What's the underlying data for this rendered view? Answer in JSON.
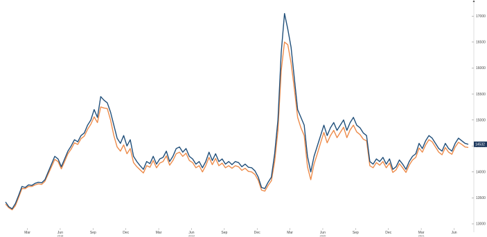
{
  "chart_data": {
    "type": "line",
    "title": "",
    "xlabel": "",
    "ylabel": "",
    "ylim": [
      12920,
      17230
    ],
    "grid": false,
    "legend": "none",
    "y_ticks": [
      13000,
      13500,
      14000,
      14500,
      15000,
      15500,
      16000,
      16500,
      17000
    ],
    "x_ticks": [
      {
        "label": "Mar",
        "x": 2
      },
      {
        "label": "Jun",
        "x": 5
      },
      {
        "label": "Sep",
        "x": 8
      },
      {
        "label": "Dec",
        "x": 11
      },
      {
        "label": "Mar",
        "x": 14
      },
      {
        "label": "Jun",
        "x": 17
      },
      {
        "label": "Sep",
        "x": 20
      },
      {
        "label": "Dec",
        "x": 23
      },
      {
        "label": "Mar",
        "x": 26
      },
      {
        "label": "Jun",
        "x": 29
      },
      {
        "label": "Sep",
        "x": 32
      },
      {
        "label": "Dec",
        "x": 35
      },
      {
        "label": "Mar",
        "x": 38
      },
      {
        "label": "Jun",
        "x": 41
      }
    ],
    "year_labels": [
      {
        "label": "2018",
        "x": 5
      },
      {
        "label": "2019",
        "x": 17
      },
      {
        "label": "2020",
        "x": 29
      },
      {
        "label": "2021",
        "x": 38
      }
    ],
    "last_value_label": "14532",
    "series": [
      {
        "color": "#1f4e79",
        "points": [
          [
            0.0,
            13420
          ],
          [
            0.3,
            13330
          ],
          [
            0.6,
            13290
          ],
          [
            0.9,
            13390
          ],
          [
            1.2,
            13550
          ],
          [
            1.5,
            13720
          ],
          [
            1.8,
            13700
          ],
          [
            2.1,
            13750
          ],
          [
            2.4,
            13740
          ],
          [
            2.7,
            13780
          ],
          [
            3.0,
            13800
          ],
          [
            3.3,
            13790
          ],
          [
            3.6,
            13850
          ],
          [
            3.9,
            14000
          ],
          [
            4.2,
            14150
          ],
          [
            4.5,
            14300
          ],
          [
            4.8,
            14250
          ],
          [
            5.1,
            14100
          ],
          [
            5.4,
            14250
          ],
          [
            5.7,
            14400
          ],
          [
            6.0,
            14500
          ],
          [
            6.3,
            14620
          ],
          [
            6.6,
            14580
          ],
          [
            6.9,
            14700
          ],
          [
            7.2,
            14750
          ],
          [
            7.5,
            14900
          ],
          [
            7.8,
            15000
          ],
          [
            8.1,
            15200
          ],
          [
            8.4,
            15050
          ],
          [
            8.7,
            15450
          ],
          [
            9.0,
            15380
          ],
          [
            9.3,
            15330
          ],
          [
            9.6,
            15150
          ],
          [
            9.9,
            14900
          ],
          [
            10.2,
            14650
          ],
          [
            10.5,
            14550
          ],
          [
            10.8,
            14700
          ],
          [
            11.1,
            14500
          ],
          [
            11.4,
            14620
          ],
          [
            11.7,
            14300
          ],
          [
            12.0,
            14200
          ],
          [
            12.3,
            14120
          ],
          [
            12.6,
            14050
          ],
          [
            12.9,
            14200
          ],
          [
            13.2,
            14160
          ],
          [
            13.5,
            14300
          ],
          [
            13.8,
            14150
          ],
          [
            14.1,
            14250
          ],
          [
            14.4,
            14280
          ],
          [
            14.7,
            14400
          ],
          [
            15.0,
            14200
          ],
          [
            15.3,
            14300
          ],
          [
            15.6,
            14450
          ],
          [
            15.9,
            14480
          ],
          [
            16.2,
            14380
          ],
          [
            16.5,
            14450
          ],
          [
            16.8,
            14300
          ],
          [
            17.1,
            14250
          ],
          [
            17.4,
            14150
          ],
          [
            17.7,
            14200
          ],
          [
            18.0,
            14080
          ],
          [
            18.3,
            14200
          ],
          [
            18.6,
            14380
          ],
          [
            18.9,
            14220
          ],
          [
            19.2,
            14350
          ],
          [
            19.5,
            14200
          ],
          [
            19.8,
            14250
          ],
          [
            20.1,
            14150
          ],
          [
            20.4,
            14200
          ],
          [
            20.7,
            14140
          ],
          [
            21.0,
            14200
          ],
          [
            21.3,
            14180
          ],
          [
            21.6,
            14100
          ],
          [
            21.9,
            14150
          ],
          [
            22.2,
            14090
          ],
          [
            22.5,
            14080
          ],
          [
            22.8,
            14020
          ],
          [
            23.1,
            13900
          ],
          [
            23.4,
            13700
          ],
          [
            23.7,
            13680
          ],
          [
            24.0,
            13800
          ],
          [
            24.3,
            13900
          ],
          [
            24.6,
            14350
          ],
          [
            24.9,
            15000
          ],
          [
            25.2,
            16300
          ],
          [
            25.5,
            17050
          ],
          [
            25.8,
            16750
          ],
          [
            26.1,
            16400
          ],
          [
            26.4,
            15800
          ],
          [
            26.7,
            15200
          ],
          [
            27.0,
            15050
          ],
          [
            27.3,
            14900
          ],
          [
            27.6,
            14300
          ],
          [
            27.9,
            14000
          ],
          [
            28.2,
            14300
          ],
          [
            28.5,
            14500
          ],
          [
            28.8,
            14700
          ],
          [
            29.1,
            14900
          ],
          [
            29.4,
            14700
          ],
          [
            29.7,
            14850
          ],
          [
            30.0,
            14950
          ],
          [
            30.3,
            14800
          ],
          [
            30.6,
            14900
          ],
          [
            30.9,
            15000
          ],
          [
            31.2,
            14800
          ],
          [
            31.5,
            14950
          ],
          [
            31.8,
            15050
          ],
          [
            32.1,
            14900
          ],
          [
            32.4,
            14850
          ],
          [
            32.7,
            14750
          ],
          [
            33.0,
            14700
          ],
          [
            33.3,
            14200
          ],
          [
            33.6,
            14150
          ],
          [
            33.9,
            14250
          ],
          [
            34.2,
            14200
          ],
          [
            34.5,
            14280
          ],
          [
            34.8,
            14150
          ],
          [
            35.1,
            14250
          ],
          [
            35.4,
            14050
          ],
          [
            35.7,
            14100
          ],
          [
            36.0,
            14230
          ],
          [
            36.3,
            14150
          ],
          [
            36.6,
            14050
          ],
          [
            36.9,
            14200
          ],
          [
            37.2,
            14300
          ],
          [
            37.5,
            14350
          ],
          [
            37.8,
            14550
          ],
          [
            38.1,
            14450
          ],
          [
            38.4,
            14600
          ],
          [
            38.7,
            14700
          ],
          [
            39.0,
            14650
          ],
          [
            39.3,
            14550
          ],
          [
            39.6,
            14450
          ],
          [
            39.9,
            14400
          ],
          [
            40.2,
            14550
          ],
          [
            40.5,
            14450
          ],
          [
            40.8,
            14400
          ],
          [
            41.1,
            14550
          ],
          [
            41.4,
            14650
          ],
          [
            41.7,
            14600
          ],
          [
            42.0,
            14550
          ],
          [
            42.3,
            14532
          ]
        ]
      },
      {
        "color": "#ed8b4a",
        "points": [
          [
            0.0,
            13380
          ],
          [
            0.3,
            13310
          ],
          [
            0.6,
            13270
          ],
          [
            0.9,
            13350
          ],
          [
            1.2,
            13510
          ],
          [
            1.5,
            13680
          ],
          [
            1.8,
            13680
          ],
          [
            2.1,
            13720
          ],
          [
            2.4,
            13720
          ],
          [
            2.7,
            13750
          ],
          [
            3.0,
            13770
          ],
          [
            3.3,
            13760
          ],
          [
            3.6,
            13820
          ],
          [
            3.9,
            13960
          ],
          [
            4.2,
            14100
          ],
          [
            4.5,
            14240
          ],
          [
            4.8,
            14200
          ],
          [
            5.1,
            14060
          ],
          [
            5.4,
            14200
          ],
          [
            5.7,
            14350
          ],
          [
            6.0,
            14440
          ],
          [
            6.3,
            14560
          ],
          [
            6.6,
            14530
          ],
          [
            6.9,
            14640
          ],
          [
            7.2,
            14690
          ],
          [
            7.5,
            14820
          ],
          [
            7.8,
            14920
          ],
          [
            8.1,
            15060
          ],
          [
            8.4,
            14950
          ],
          [
            8.7,
            15250
          ],
          [
            9.0,
            15230
          ],
          [
            9.3,
            15220
          ],
          [
            9.6,
            15000
          ],
          [
            9.9,
            14700
          ],
          [
            10.2,
            14480
          ],
          [
            10.5,
            14400
          ],
          [
            10.8,
            14520
          ],
          [
            11.1,
            14350
          ],
          [
            11.4,
            14450
          ],
          [
            11.7,
            14180
          ],
          [
            12.0,
            14100
          ],
          [
            12.3,
            14040
          ],
          [
            12.6,
            13980
          ],
          [
            12.9,
            14120
          ],
          [
            13.2,
            14090
          ],
          [
            13.5,
            14220
          ],
          [
            13.8,
            14080
          ],
          [
            14.1,
            14170
          ],
          [
            14.4,
            14200
          ],
          [
            14.7,
            14310
          ],
          [
            15.0,
            14130
          ],
          [
            15.3,
            14220
          ],
          [
            15.6,
            14350
          ],
          [
            15.9,
            14380
          ],
          [
            16.2,
            14300
          ],
          [
            16.5,
            14360
          ],
          [
            16.8,
            14220
          ],
          [
            17.1,
            14180
          ],
          [
            17.4,
            14080
          ],
          [
            17.7,
            14120
          ],
          [
            18.0,
            14000
          ],
          [
            18.3,
            14120
          ],
          [
            18.6,
            14280
          ],
          [
            18.9,
            14140
          ],
          [
            19.2,
            14260
          ],
          [
            19.5,
            14120
          ],
          [
            19.8,
            14170
          ],
          [
            20.1,
            14080
          ],
          [
            20.4,
            14120
          ],
          [
            20.7,
            14070
          ],
          [
            21.0,
            14120
          ],
          [
            21.3,
            14100
          ],
          [
            21.6,
            14030
          ],
          [
            21.9,
            14070
          ],
          [
            22.2,
            14010
          ],
          [
            22.5,
            14000
          ],
          [
            22.8,
            13950
          ],
          [
            23.1,
            13840
          ],
          [
            23.4,
            13650
          ],
          [
            23.7,
            13630
          ],
          [
            24.0,
            13740
          ],
          [
            24.3,
            13830
          ],
          [
            24.6,
            14200
          ],
          [
            24.9,
            14800
          ],
          [
            25.2,
            15950
          ],
          [
            25.5,
            16500
          ],
          [
            25.8,
            16450
          ],
          [
            26.1,
            16100
          ],
          [
            26.4,
            15600
          ],
          [
            26.7,
            15050
          ],
          [
            27.0,
            14850
          ],
          [
            27.3,
            14700
          ],
          [
            27.6,
            14100
          ],
          [
            27.9,
            13850
          ],
          [
            28.2,
            14150
          ],
          [
            28.5,
            14350
          ],
          [
            28.8,
            14560
          ],
          [
            29.1,
            14760
          ],
          [
            29.4,
            14560
          ],
          [
            29.7,
            14700
          ],
          [
            30.0,
            14800
          ],
          [
            30.3,
            14660
          ],
          [
            30.6,
            14760
          ],
          [
            30.9,
            14860
          ],
          [
            31.2,
            14660
          ],
          [
            31.5,
            14810
          ],
          [
            31.8,
            14900
          ],
          [
            32.1,
            14770
          ],
          [
            32.4,
            14720
          ],
          [
            32.7,
            14630
          ],
          [
            33.0,
            14600
          ],
          [
            33.3,
            14120
          ],
          [
            33.6,
            14080
          ],
          [
            33.9,
            14180
          ],
          [
            34.2,
            14130
          ],
          [
            34.5,
            14200
          ],
          [
            34.8,
            14080
          ],
          [
            35.1,
            14170
          ],
          [
            35.4,
            13990
          ],
          [
            35.7,
            14040
          ],
          [
            36.0,
            14160
          ],
          [
            36.3,
            14080
          ],
          [
            36.6,
            13990
          ],
          [
            36.9,
            14130
          ],
          [
            37.2,
            14230
          ],
          [
            37.5,
            14280
          ],
          [
            37.8,
            14460
          ],
          [
            38.1,
            14380
          ],
          [
            38.4,
            14520
          ],
          [
            38.7,
            14620
          ],
          [
            39.0,
            14580
          ],
          [
            39.3,
            14480
          ],
          [
            39.6,
            14380
          ],
          [
            39.9,
            14330
          ],
          [
            40.2,
            14470
          ],
          [
            40.5,
            14380
          ],
          [
            40.8,
            14340
          ],
          [
            41.1,
            14480
          ],
          [
            41.4,
            14570
          ],
          [
            41.7,
            14530
          ],
          [
            42.0,
            14480
          ],
          [
            42.3,
            14470
          ]
        ]
      }
    ]
  }
}
